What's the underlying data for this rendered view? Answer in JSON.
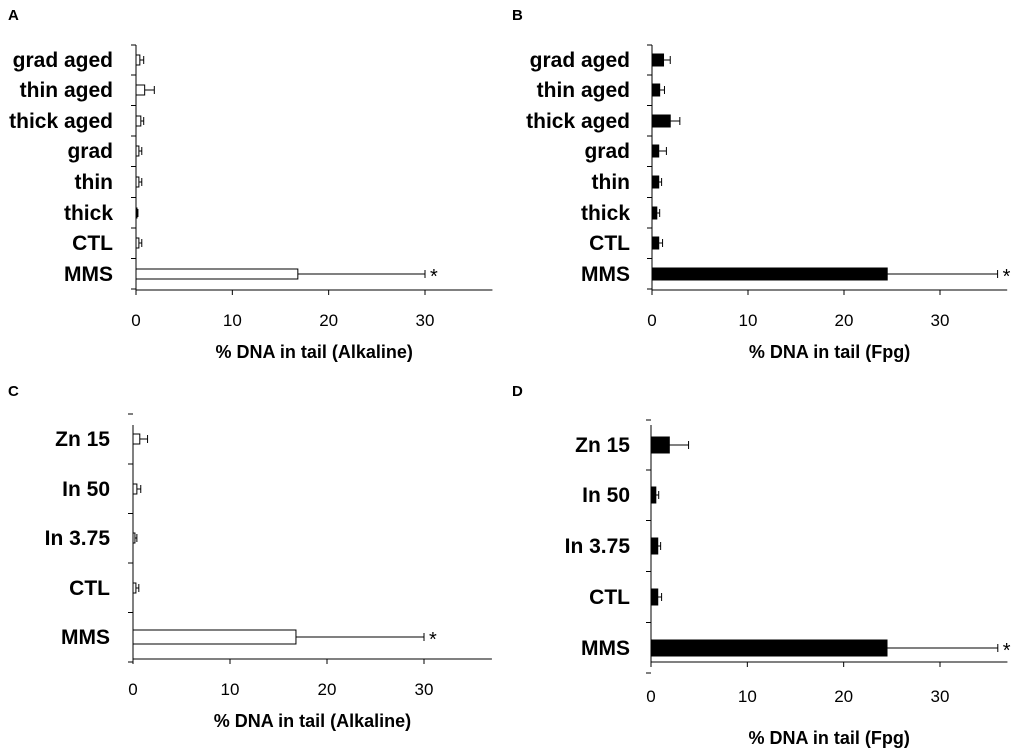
{
  "colors": {
    "open_fill": "#ffffff",
    "solid_fill": "#000000",
    "stroke": "#000000"
  },
  "chart_data": [
    {
      "panel": "A",
      "type": "bar",
      "orientation": "horizontal",
      "style": "open",
      "categories": [
        "grad aged",
        "thin aged",
        "thick aged",
        "grad",
        "thin",
        "thick",
        "CTL",
        "MMS"
      ],
      "values": [
        0.4,
        0.9,
        0.5,
        0.3,
        0.3,
        0.1,
        0.3,
        16.8
      ],
      "errors": [
        0.4,
        1.0,
        0.3,
        0.3,
        0.3,
        0.1,
        0.3,
        13.2
      ],
      "significance": [
        "",
        "",
        "",
        "",
        "",
        "",
        "",
        "*"
      ],
      "xlabel": "% DNA in tail (Alkaline)",
      "xlim": [
        0,
        37
      ],
      "xticks": [
        0,
        10,
        20,
        30
      ]
    },
    {
      "panel": "B",
      "type": "bar",
      "orientation": "horizontal",
      "style": "solid",
      "categories": [
        "grad aged",
        "thin aged",
        "thick aged",
        "grad",
        "thin",
        "thick",
        "CTL",
        "MMS"
      ],
      "values": [
        1.2,
        0.8,
        1.9,
        0.7,
        0.7,
        0.5,
        0.7,
        24.5
      ],
      "errors": [
        0.7,
        0.5,
        1.0,
        0.8,
        0.3,
        0.3,
        0.4,
        11.5
      ],
      "significance": [
        "",
        "",
        "",
        "",
        "",
        "",
        "",
        "*"
      ],
      "xlabel": "% DNA in tail (Fpg)",
      "xlim": [
        0,
        37
      ],
      "xticks": [
        0,
        10,
        20,
        30
      ]
    },
    {
      "panel": "C",
      "type": "bar",
      "orientation": "horizontal",
      "style": "open",
      "categories": [
        "Zn 15",
        "In 50",
        "In 3.75",
        "CTL",
        "MMS"
      ],
      "values": [
        0.7,
        0.4,
        0.2,
        0.3,
        16.8
      ],
      "errors": [
        0.8,
        0.4,
        0.2,
        0.3,
        13.2
      ],
      "significance": [
        "",
        "",
        "",
        "",
        "*"
      ],
      "xlabel": "% DNA in tail (Alkaline)",
      "xlim": [
        0,
        37
      ],
      "xticks": [
        0,
        10,
        20,
        30
      ]
    },
    {
      "panel": "D",
      "type": "bar",
      "orientation": "horizontal",
      "style": "solid",
      "categories": [
        "Zn 15",
        "In 50",
        "In 3.75",
        "CTL",
        "MMS"
      ],
      "values": [
        1.9,
        0.5,
        0.7,
        0.7,
        24.5
      ],
      "errors": [
        2.0,
        0.3,
        0.3,
        0.4,
        11.5
      ],
      "significance": [
        "",
        "",
        "",
        "",
        "*"
      ],
      "xlabel": "% DNA in tail (Fpg)",
      "xlim": [
        0,
        37
      ],
      "xticks": [
        0,
        10,
        20,
        30
      ]
    }
  ]
}
